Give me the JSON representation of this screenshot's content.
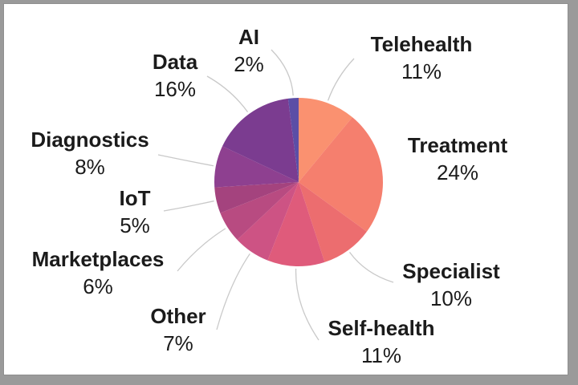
{
  "window": {
    "matte_color": "#9a9a9a",
    "panel_color": "#ffffff"
  },
  "chart_data": {
    "type": "pie",
    "start_angle": "12-o-clock",
    "direction": "clockwise",
    "legend": "none",
    "leader_line_color": "#c9c9c9",
    "text_color": "#1b1b1b",
    "slices": [
      {
        "label": "Telehealth",
        "value": 11,
        "pct_label": "11%",
        "color": "#FA9170"
      },
      {
        "label": "Treatment",
        "value": 24,
        "pct_label": "24%",
        "color": "#F57F6E"
      },
      {
        "label": "Specialist",
        "value": 10,
        "pct_label": "10%",
        "color": "#EC6D6F"
      },
      {
        "label": "Self-health",
        "value": 11,
        "pct_label": "11%",
        "color": "#DF5B7B"
      },
      {
        "label": "Other",
        "value": 7,
        "pct_label": "7%",
        "color": "#CD5384"
      },
      {
        "label": "Marketplaces",
        "value": 6,
        "pct_label": "6%",
        "color": "#B84B81"
      },
      {
        "label": "IoT",
        "value": 5,
        "pct_label": "5%",
        "color": "#A4437E"
      },
      {
        "label": "Diagnostics",
        "value": 8,
        "pct_label": "8%",
        "color": "#8E4090"
      },
      {
        "label": "Data",
        "value": 16,
        "pct_label": "16%",
        "color": "#7B3C90"
      },
      {
        "label": "AI",
        "value": 2,
        "pct_label": "2%",
        "color": "#5B4EA6"
      }
    ]
  }
}
